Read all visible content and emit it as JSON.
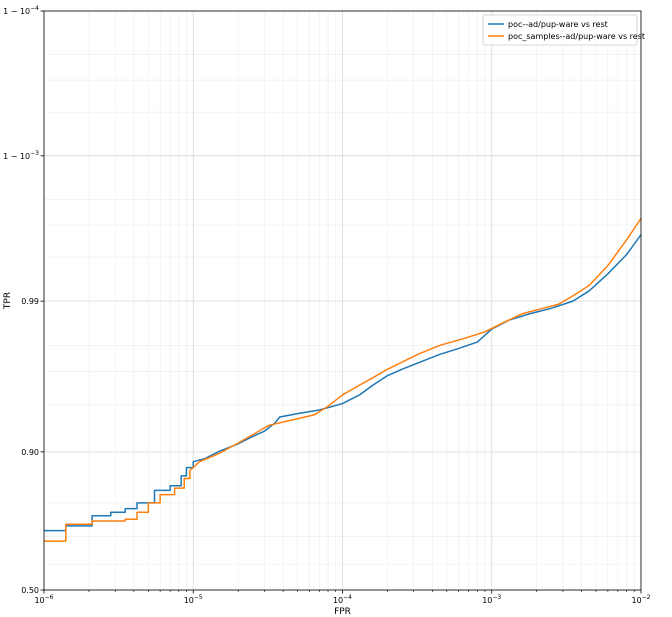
{
  "chart_data": {
    "type": "line",
    "title": "",
    "xlabel": "FPR",
    "ylabel": "TPR",
    "x_scale": "log",
    "y_scale": "logit",
    "xlim": [
      1e-06,
      0.01
    ],
    "ylim": [
      0.5,
      0.9999
    ],
    "grid": true,
    "legend_position": "top-right",
    "x_ticks": [
      {
        "value": 1e-06,
        "base": "10",
        "exp": "−6"
      },
      {
        "value": 1e-05,
        "base": "10",
        "exp": "−5"
      },
      {
        "value": 0.0001,
        "base": "10",
        "exp": "−4"
      },
      {
        "value": 0.001,
        "base": "10",
        "exp": "−3"
      },
      {
        "value": 0.01,
        "base": "10",
        "exp": "−2"
      }
    ],
    "y_ticks": [
      {
        "value": 0.5,
        "label": "0.50"
      },
      {
        "value": 0.9,
        "label": "0.90"
      },
      {
        "value": 0.99,
        "label": "0.99"
      },
      {
        "value": 0.999,
        "label": "1 − 10",
        "exp": "−3"
      },
      {
        "value": 0.9999,
        "label": "1 − 10",
        "exp": "−4"
      }
    ],
    "series": [
      {
        "name": "poc--ad/pup-ware vs rest",
        "color": "#1f77b4",
        "points": [
          [
            1e-06,
            0.72
          ],
          [
            1.4e-06,
            0.72
          ],
          [
            1.4e-06,
            0.735
          ],
          [
            2.1e-06,
            0.735
          ],
          [
            2.1e-06,
            0.765
          ],
          [
            2.8e-06,
            0.765
          ],
          [
            2.8e-06,
            0.775
          ],
          [
            3.5e-06,
            0.775
          ],
          [
            3.5e-06,
            0.785
          ],
          [
            4.2e-06,
            0.785
          ],
          [
            4.2e-06,
            0.8
          ],
          [
            5.5e-06,
            0.8
          ],
          [
            5.5e-06,
            0.83
          ],
          [
            7e-06,
            0.83
          ],
          [
            7e-06,
            0.84
          ],
          [
            8.3e-06,
            0.84
          ],
          [
            8.3e-06,
            0.86
          ],
          [
            9e-06,
            0.86
          ],
          [
            9e-06,
            0.875
          ],
          [
            1e-05,
            0.875
          ],
          [
            1e-05,
            0.885
          ],
          [
            1.2e-05,
            0.89
          ],
          [
            1.5e-05,
            0.901
          ],
          [
            2e-05,
            0.911
          ],
          [
            2.5e-05,
            0.92
          ],
          [
            3e-05,
            0.926
          ],
          [
            3.5e-05,
            0.934
          ],
          [
            3.8e-05,
            0.94
          ],
          [
            5e-05,
            0.943
          ],
          [
            7e-05,
            0.946
          ],
          [
            0.0001,
            0.951
          ],
          [
            0.00013,
            0.957
          ],
          [
            0.00016,
            0.963
          ],
          [
            0.0002,
            0.968
          ],
          [
            0.00025,
            0.971
          ],
          [
            0.00033,
            0.974
          ],
          [
            0.00045,
            0.977
          ],
          [
            0.0006,
            0.979
          ],
          [
            0.0008,
            0.981
          ],
          [
            0.001,
            0.9845
          ],
          [
            0.0013,
            0.9865
          ],
          [
            0.0018,
            0.9878
          ],
          [
            0.0025,
            0.9888
          ],
          [
            0.0035,
            0.99
          ],
          [
            0.0045,
            0.9915
          ],
          [
            0.006,
            0.9935
          ],
          [
            0.008,
            0.9952
          ],
          [
            0.01,
            0.9965
          ]
        ]
      },
      {
        "name": "poc_samples--ad/pup-ware vs rest",
        "color": "#ff7f0e",
        "points": [
          [
            1e-06,
            0.685
          ],
          [
            1.4e-06,
            0.685
          ],
          [
            1.4e-06,
            0.74
          ],
          [
            2.1e-06,
            0.74
          ],
          [
            2.1e-06,
            0.75
          ],
          [
            3.5e-06,
            0.75
          ],
          [
            3.5e-06,
            0.755
          ],
          [
            4.2e-06,
            0.755
          ],
          [
            4.2e-06,
            0.775
          ],
          [
            5e-06,
            0.775
          ],
          [
            5e-06,
            0.8
          ],
          [
            6e-06,
            0.8
          ],
          [
            6e-06,
            0.82
          ],
          [
            7.5e-06,
            0.82
          ],
          [
            7.5e-06,
            0.835
          ],
          [
            8.7e-06,
            0.835
          ],
          [
            8.7e-06,
            0.855
          ],
          [
            9.5e-06,
            0.855
          ],
          [
            9.5e-06,
            0.87
          ],
          [
            1.1e-05,
            0.885
          ],
          [
            1.5e-05,
            0.898
          ],
          [
            2e-05,
            0.912
          ],
          [
            2.5e-05,
            0.922
          ],
          [
            3.2e-05,
            0.932
          ],
          [
            4.5e-05,
            0.937
          ],
          [
            6.5e-05,
            0.942
          ],
          [
            8e-05,
            0.949
          ],
          [
            0.0001,
            0.957
          ],
          [
            0.00013,
            0.963
          ],
          [
            0.00016,
            0.967
          ],
          [
            0.0002,
            0.971
          ],
          [
            0.00025,
            0.974
          ],
          [
            0.00032,
            0.977
          ],
          [
            0.00045,
            0.98
          ],
          [
            0.00065,
            0.982
          ],
          [
            0.0009,
            0.9838
          ],
          [
            0.0012,
            0.986
          ],
          [
            0.0016,
            0.9878
          ],
          [
            0.0022,
            0.9888
          ],
          [
            0.0028,
            0.9895
          ],
          [
            0.0035,
            0.9908
          ],
          [
            0.0045,
            0.9922
          ],
          [
            0.006,
            0.9943
          ],
          [
            0.008,
            0.9962
          ],
          [
            0.01,
            0.9973
          ]
        ]
      }
    ]
  }
}
